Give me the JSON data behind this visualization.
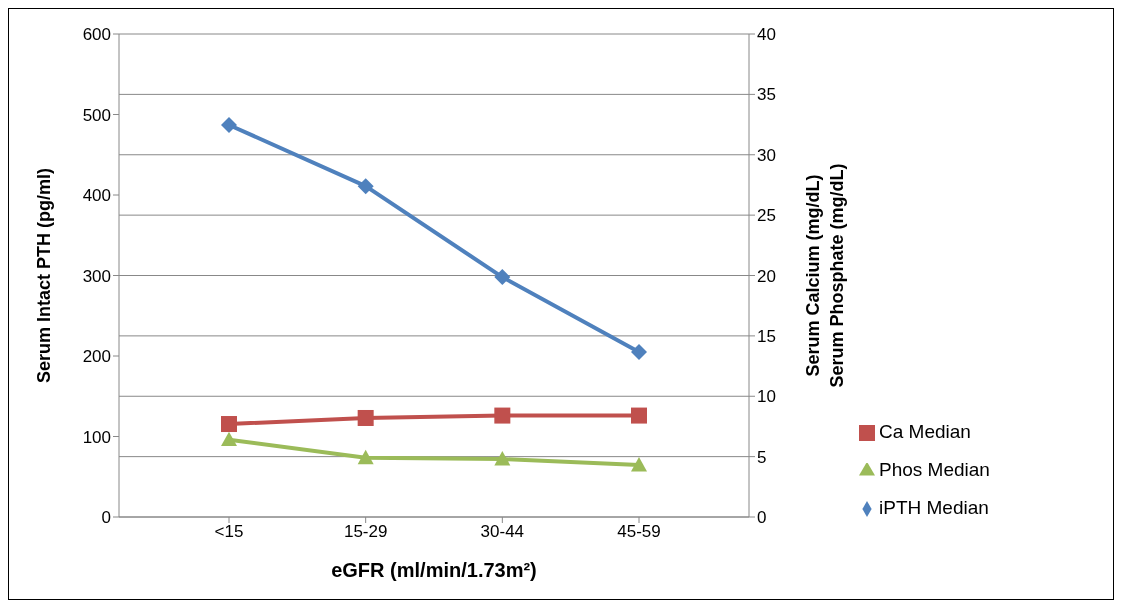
{
  "chart_data": {
    "type": "line",
    "categories": [
      "<15",
      "15-29",
      "30-44",
      "45-59"
    ],
    "xlabel": "eGFR (ml/min/1.73m²)",
    "ylabel": "Serum Intact PTH  (pg/ml)",
    "y2label": "Serum Calcium (mg/dL)\nSerum Phosphate (mg/dL)",
    "series": [
      {
        "name": "Ca Median",
        "color": "#c0504d",
        "values": [
          7.7,
          8.2,
          8.4,
          8.4
        ],
        "axis": "y2",
        "marker": "square"
      },
      {
        "name": "Phos Median",
        "color": "#9bbb59",
        "values": [
          6.4,
          4.9,
          4.8,
          4.3
        ],
        "axis": "y2",
        "marker": "triangle"
      },
      {
        "name": "iPTH Median",
        "color": "#4f81bd",
        "values": [
          487,
          411,
          298,
          205
        ],
        "marker": "diamond"
      }
    ],
    "ylim": [
      0,
      600
    ],
    "yticks": [
      0,
      100,
      200,
      300,
      400,
      500,
      600
    ],
    "y2lim": [
      0,
      40
    ],
    "y2ticks": [
      0,
      5,
      10,
      15,
      20,
      25,
      30,
      35,
      40
    ],
    "grid": "y2",
    "legend": "right",
    "line_style": "solid"
  }
}
